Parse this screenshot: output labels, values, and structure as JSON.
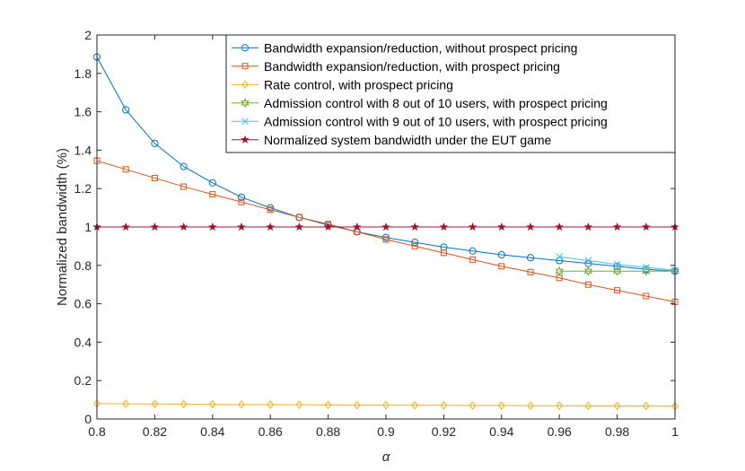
{
  "chart_data": {
    "type": "line",
    "title": "",
    "xlabel": "α",
    "ylabel": "Normalized bandwidth (%)",
    "xlim": [
      0.8,
      1.0
    ],
    "ylim": [
      0,
      2
    ],
    "xticks": [
      "0.8",
      "0.82",
      "0.84",
      "0.86",
      "0.88",
      "0.9",
      "0.92",
      "0.94",
      "0.96",
      "0.98",
      "1"
    ],
    "yticks": [
      "0",
      "0.2",
      "0.4",
      "0.6",
      "0.8",
      "1",
      "1.2",
      "1.4",
      "1.6",
      "1.8",
      "2"
    ],
    "grid": false,
    "legend_position": "top-right",
    "series": [
      {
        "name": "Bandwidth expansion/reduction, without prospect pricing",
        "color": "#0072BD",
        "marker": "circle",
        "x": [
          0.8,
          0.81,
          0.82,
          0.83,
          0.84,
          0.85,
          0.86,
          0.87,
          0.88,
          0.89,
          0.9,
          0.91,
          0.92,
          0.93,
          0.94,
          0.95,
          0.96,
          0.97,
          0.98,
          0.99,
          1.0
        ],
        "values": [
          1.885,
          1.61,
          1.435,
          1.315,
          1.23,
          1.155,
          1.1,
          1.05,
          1.01,
          0.975,
          0.945,
          0.92,
          0.895,
          0.875,
          0.855,
          0.84,
          0.825,
          0.81,
          0.795,
          0.78,
          0.77
        ]
      },
      {
        "name": "Bandwidth expansion/reduction, with prospect pricing",
        "color": "#D95319",
        "marker": "square",
        "x": [
          0.8,
          0.81,
          0.82,
          0.83,
          0.84,
          0.85,
          0.86,
          0.87,
          0.88,
          0.89,
          0.9,
          0.91,
          0.92,
          0.93,
          0.94,
          0.95,
          0.96,
          0.97,
          0.98,
          0.99,
          1.0
        ],
        "values": [
          1.345,
          1.3,
          1.255,
          1.21,
          1.17,
          1.13,
          1.09,
          1.05,
          1.015,
          0.975,
          0.935,
          0.9,
          0.865,
          0.83,
          0.795,
          0.765,
          0.735,
          0.7,
          0.67,
          0.64,
          0.61
        ]
      },
      {
        "name": "Rate control, with prospect pricing",
        "color": "#EDB120",
        "marker": "diamond",
        "x": [
          0.8,
          0.81,
          0.82,
          0.83,
          0.84,
          0.85,
          0.86,
          0.87,
          0.88,
          0.89,
          0.9,
          0.91,
          0.92,
          0.93,
          0.94,
          0.95,
          0.96,
          0.97,
          0.98,
          0.99,
          1.0
        ],
        "values": [
          0.08,
          0.079,
          0.078,
          0.077,
          0.076,
          0.075,
          0.075,
          0.074,
          0.073,
          0.072,
          0.072,
          0.071,
          0.071,
          0.07,
          0.07,
          0.069,
          0.069,
          0.068,
          0.068,
          0.068,
          0.067
        ]
      },
      {
        "name": "Admission control with 8 out of 10 users, with prospect pricing",
        "color": "#77AC30",
        "marker": "hexagram",
        "x": [
          0.96,
          0.97,
          0.98,
          0.99,
          1.0
        ],
        "values": [
          0.77,
          0.77,
          0.77,
          0.77,
          0.77
        ]
      },
      {
        "name": "Admission control with 9 out of 10 users, with prospect pricing",
        "color": "#4DBEEE",
        "marker": "x",
        "x": [
          0.96,
          0.97,
          0.98,
          0.99,
          1.0
        ],
        "values": [
          0.845,
          0.825,
          0.805,
          0.79,
          0.775
        ]
      },
      {
        "name": "Normalized system bandwidth under the EUT game",
        "color": "#A2142F",
        "marker": "pentagram",
        "x": [
          0.8,
          0.81,
          0.82,
          0.83,
          0.84,
          0.85,
          0.86,
          0.87,
          0.88,
          0.89,
          0.9,
          0.91,
          0.92,
          0.93,
          0.94,
          0.95,
          0.96,
          0.97,
          0.98,
          0.99,
          1.0
        ],
        "values": [
          1,
          1,
          1,
          1,
          1,
          1,
          1,
          1,
          1,
          1,
          1,
          1,
          1,
          1,
          1,
          1,
          1,
          1,
          1,
          1,
          1
        ]
      }
    ]
  }
}
